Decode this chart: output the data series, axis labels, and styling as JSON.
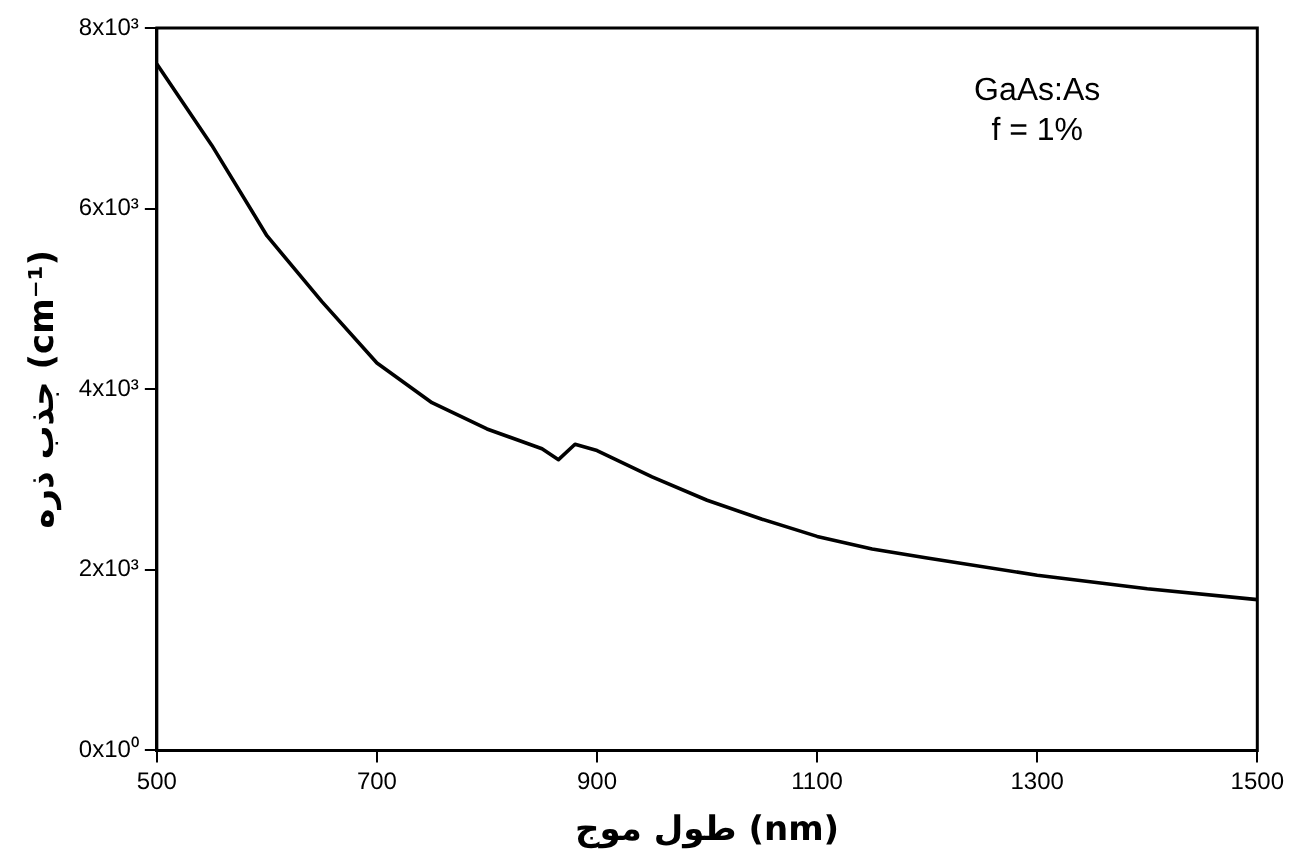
{
  "chart_data": {
    "type": "line",
    "xlabel": "طول موج (nm)",
    "ylabel": "جذب ذره (cm⁻¹)",
    "annotations": [
      "GaAs:As",
      "f = 1%"
    ],
    "x": [
      500,
      550,
      600,
      650,
      700,
      750,
      800,
      850,
      865,
      880,
      900,
      950,
      1000,
      1050,
      1100,
      1150,
      1200,
      1300,
      1400,
      1500
    ],
    "series": [
      {
        "color": "#000000",
        "values": [
          7600,
          6700,
          5700,
          4970,
          4290,
          3850,
          3560,
          3340,
          3220,
          3390,
          3320,
          3030,
          2770,
          2560,
          2370,
          2230,
          2130,
          1940,
          1790,
          1670
        ]
      }
    ],
    "xlim": [
      500,
      1500
    ],
    "xticks": [
      500,
      700,
      900,
      1100,
      1300,
      1500
    ],
    "ylim": [
      0,
      8000
    ],
    "yticks": [
      {
        "value": 0,
        "label": "0x10⁰"
      },
      {
        "value": 2000,
        "label": "2x10³"
      },
      {
        "value": 4000,
        "label": "4x10³"
      },
      {
        "value": 6000,
        "label": "6x10³"
      },
      {
        "value": 8000,
        "label": "8x10³"
      }
    ],
    "grid": false,
    "legend": false,
    "marker": "none",
    "line_style": "solid"
  }
}
